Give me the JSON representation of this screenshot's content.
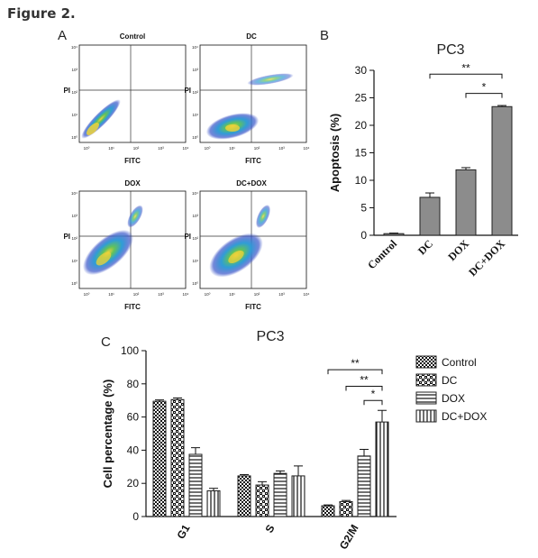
{
  "figure_title": "Figure 2.",
  "panels": {
    "a_label": "A",
    "b_label": "B",
    "c_label": "C"
  },
  "flow_plots": [
    {
      "title": "Control",
      "y_label": "PI",
      "x_label": "FITC"
    },
    {
      "title": "DC",
      "y_label": "PI",
      "x_label": "FITC"
    },
    {
      "title": "DOX",
      "y_label": "PI",
      "x_label": "FITC"
    },
    {
      "title": "DC+DOX",
      "y_label": "PI",
      "x_label": "FITC"
    }
  ],
  "flow_tick_labels": [
    "10⁰",
    "10¹",
    "10²",
    "10³",
    "10⁴"
  ],
  "chart_data": [
    {
      "type": "bar",
      "title": "PC3",
      "xlabel": "",
      "ylabel": "Apoptosis (%)",
      "ylim": [
        0,
        30
      ],
      "yticks": [
        0,
        5,
        10,
        15,
        20,
        25,
        30
      ],
      "categories": [
        "Control",
        "DC",
        "DOX",
        "DC+DOX"
      ],
      "values": [
        0.3,
        6.9,
        11.9,
        23.4
      ],
      "errors": [
        0.1,
        0.8,
        0.4,
        0.2
      ],
      "bar_color": "#8c8c8c",
      "significance": [
        {
          "from": 1,
          "to": 3,
          "label": "**"
        },
        {
          "from": 2,
          "to": 3,
          "label": "*"
        }
      ]
    },
    {
      "type": "bar",
      "title": "PC3",
      "xlabel": "",
      "ylabel": "Cell percentage (%)",
      "ylim": [
        0,
        100
      ],
      "yticks": [
        0,
        20,
        40,
        60,
        80,
        100
      ],
      "categories": [
        "G1",
        "S",
        "G2/M"
      ],
      "series": [
        {
          "name": "Control",
          "values": [
            69.5,
            24.5,
            6.5
          ],
          "errors": [
            0.8,
            0.8,
            0.5
          ],
          "pattern": "checker"
        },
        {
          "name": "DC",
          "values": [
            70.5,
            19.0,
            9.0
          ],
          "errors": [
            1.0,
            2.0,
            0.7
          ],
          "pattern": "diag"
        },
        {
          "name": "DOX",
          "values": [
            37.5,
            26.0,
            36.5
          ],
          "errors": [
            4.0,
            1.5,
            4.0
          ],
          "pattern": "hlines"
        },
        {
          "name": "DC+DOX",
          "values": [
            15.5,
            24.5,
            57.0
          ],
          "errors": [
            1.5,
            6.0,
            7.0
          ],
          "pattern": "vlines"
        }
      ],
      "significance": [
        {
          "category": 2,
          "from": 0,
          "to": 3,
          "label": "**"
        },
        {
          "category": 2,
          "from": 1,
          "to": 3,
          "label": "**"
        },
        {
          "category": 2,
          "from": 2,
          "to": 3,
          "label": "*"
        }
      ]
    }
  ]
}
